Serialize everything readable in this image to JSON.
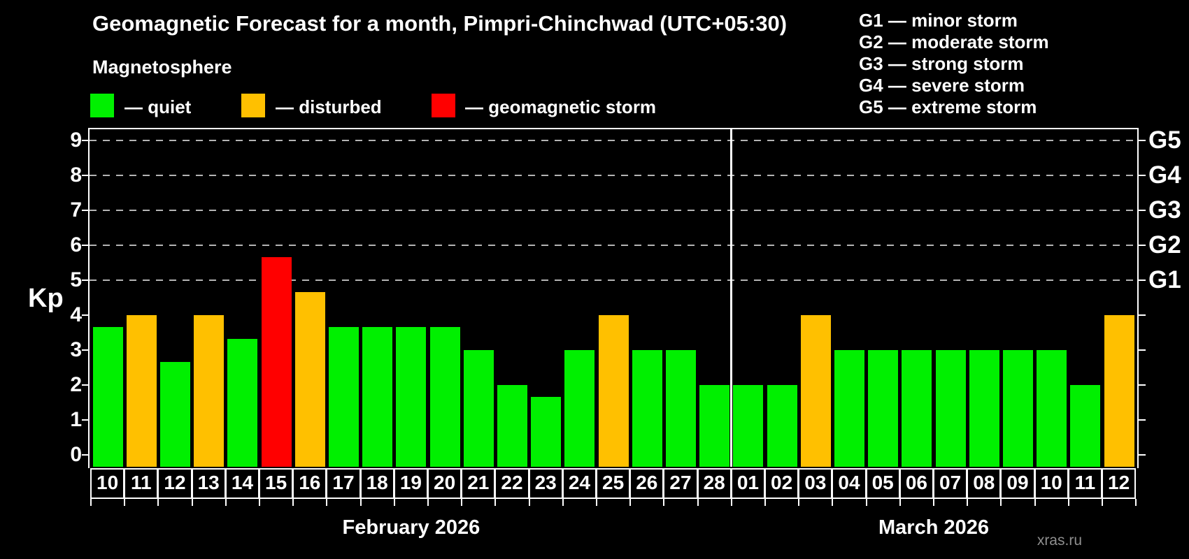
{
  "header": {
    "title": "Geomagnetic Forecast for a month, Pimpri-Chinchwad (UTC+05:30)",
    "subtitle": "Magnetosphere"
  },
  "legend": {
    "items": [
      {
        "level": "quiet",
        "label": "— quiet"
      },
      {
        "level": "disturbed",
        "label": "— disturbed"
      },
      {
        "level": "storm",
        "label": "— geomagnetic storm"
      }
    ]
  },
  "g_legend": {
    "lines": [
      "G1 — minor storm",
      "G2 — moderate storm",
      "G3 — strong storm",
      "G4 — severe storm",
      "G5 — extreme storm"
    ]
  },
  "colors": {
    "quiet": "#00f000",
    "disturbed": "#ffc000",
    "storm": "#ff0000",
    "grid": "#b4b4b4",
    "axis": "#ffffff"
  },
  "watermark": "xras.ru",
  "chart_data": {
    "type": "bar",
    "title": "Geomagnetic Forecast for a month, Pimpri-Chinchwad (UTC+05:30)",
    "ylabel": "Kp",
    "ylim": [
      0,
      9
    ],
    "yticks": [
      "0",
      "1",
      "2",
      "3",
      "4",
      "5",
      "6",
      "7",
      "8",
      "9"
    ],
    "gridlines_kp": [
      5,
      6,
      7,
      8,
      9
    ],
    "right_labels": [
      {
        "label": "G1",
        "kp": 5
      },
      {
        "label": "G2",
        "kp": 6
      },
      {
        "label": "G3",
        "kp": 7
      },
      {
        "label": "G4",
        "kp": 8
      },
      {
        "label": "G5",
        "kp": 9
      }
    ],
    "categories": [
      "10",
      "11",
      "12",
      "13",
      "14",
      "15",
      "16",
      "17",
      "18",
      "19",
      "20",
      "21",
      "22",
      "23",
      "24",
      "25",
      "26",
      "27",
      "28",
      "01",
      "02",
      "03",
      "04",
      "05",
      "06",
      "07",
      "08",
      "09",
      "10",
      "11",
      "12"
    ],
    "values": [
      3.67,
      4,
      2.67,
      4,
      3.33,
      5.67,
      4.67,
      3.67,
      3.67,
      3.67,
      3.67,
      3,
      2,
      1.67,
      3,
      4,
      3,
      3,
      2,
      2,
      2,
      4,
      3,
      3,
      3,
      3,
      3,
      3,
      3,
      2,
      4
    ],
    "levels": [
      "quiet",
      "disturbed",
      "quiet",
      "disturbed",
      "quiet",
      "storm",
      "disturbed",
      "quiet",
      "quiet",
      "quiet",
      "quiet",
      "quiet",
      "quiet",
      "quiet",
      "quiet",
      "disturbed",
      "quiet",
      "quiet",
      "quiet",
      "quiet",
      "quiet",
      "disturbed",
      "quiet",
      "quiet",
      "quiet",
      "quiet",
      "quiet",
      "quiet",
      "quiet",
      "quiet",
      "disturbed"
    ],
    "months": [
      {
        "label": "February 2026",
        "count": 19
      },
      {
        "label": "March 2026",
        "count": 12
      }
    ]
  }
}
